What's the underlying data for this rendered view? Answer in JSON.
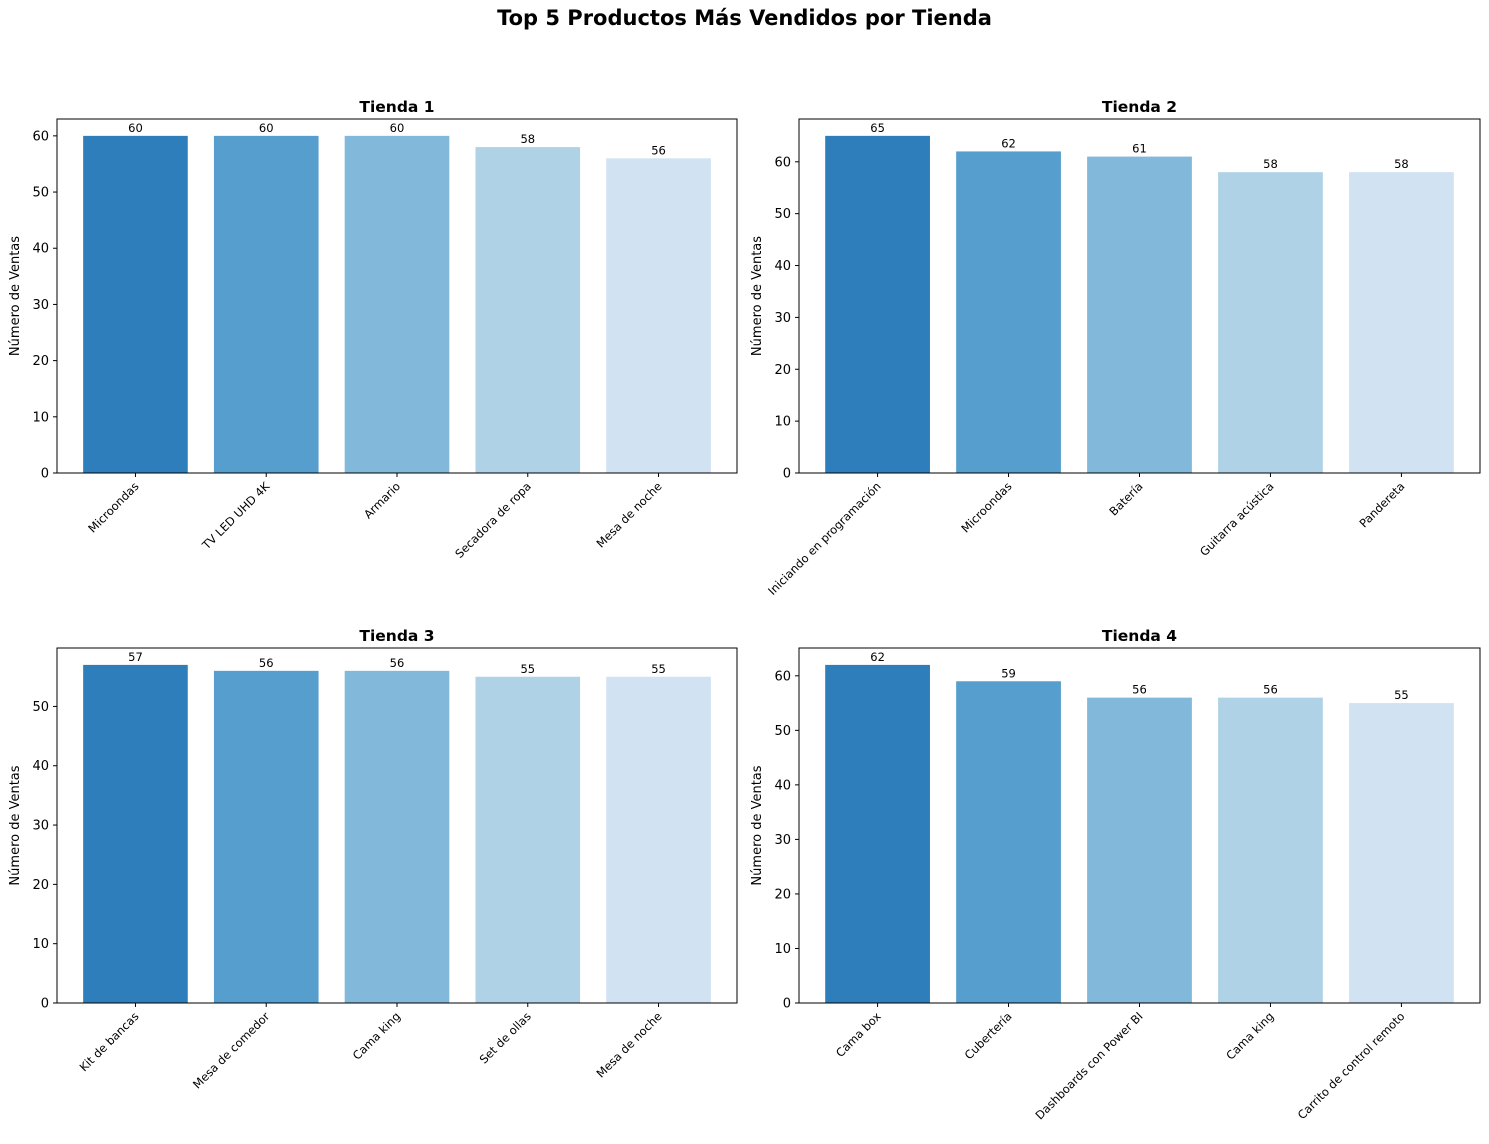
{
  "suptitle": "Top 5 Productos Más Vendidos por Tienda",
  "chart_data": [
    {
      "type": "bar",
      "title": "Tienda 1",
      "xlabel": "",
      "ylabel": "Número de Ventas",
      "ylim": [
        0,
        63
      ],
      "yticks": [
        0,
        10,
        20,
        30,
        40,
        50,
        60
      ],
      "categories": [
        "Microondas",
        "TV LED UHD 4K",
        "Armario",
        "Secadora de ropa",
        "Mesa de noche"
      ],
      "values": [
        60,
        60,
        60,
        58,
        56
      ],
      "colors": [
        "#2f7ebc",
        "#559ecd",
        "#82b8d9",
        "#b0d2e7",
        "#d1e2f2"
      ],
      "grid": false
    },
    {
      "type": "bar",
      "title": "Tienda 2",
      "xlabel": "",
      "ylabel": "Número de Ventas",
      "ylim": [
        0,
        68.25
      ],
      "yticks": [
        0,
        10,
        20,
        30,
        40,
        50,
        60
      ],
      "categories": [
        "Iniciando en programación",
        "Microondas",
        "Batería",
        "Guitarra acústica",
        "Pandereta"
      ],
      "values": [
        65,
        62,
        61,
        58,
        58
      ],
      "colors": [
        "#2f7ebc",
        "#559ecd",
        "#82b8d9",
        "#b0d2e7",
        "#d1e2f2"
      ],
      "grid": false
    },
    {
      "type": "bar",
      "title": "Tienda 3",
      "xlabel": "",
      "ylabel": "Número de Ventas",
      "ylim": [
        0,
        59.85
      ],
      "yticks": [
        0,
        10,
        20,
        30,
        40,
        50
      ],
      "categories": [
        "Kit de bancas",
        "Mesa de comedor",
        "Cama king",
        "Set de ollas",
        "Mesa de noche"
      ],
      "values": [
        57,
        56,
        56,
        55,
        55
      ],
      "colors": [
        "#2f7ebc",
        "#559ecd",
        "#82b8d9",
        "#b0d2e7",
        "#d1e2f2"
      ],
      "grid": false
    },
    {
      "type": "bar",
      "title": "Tienda 4",
      "xlabel": "",
      "ylabel": "Número de Ventas",
      "ylim": [
        0,
        65.1
      ],
      "yticks": [
        0,
        10,
        20,
        30,
        40,
        50,
        60
      ],
      "categories": [
        "Cama box",
        "Cubertería",
        "Dashboards con Power BI",
        "Cama king",
        "Carrito de control remoto"
      ],
      "values": [
        62,
        59,
        56,
        56,
        55
      ],
      "colors": [
        "#2f7ebc",
        "#559ecd",
        "#82b8d9",
        "#b0d2e7",
        "#d1e2f2"
      ],
      "grid": false
    }
  ]
}
